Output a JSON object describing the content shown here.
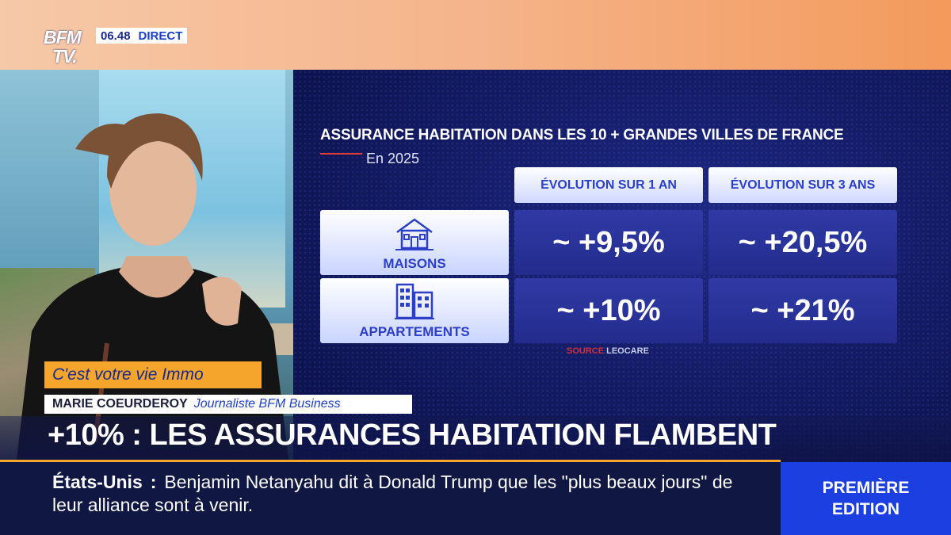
{
  "channel": {
    "logo_top": "BFM",
    "logo_bottom": "TV."
  },
  "live": {
    "time": "06.48",
    "label": "DIRECT"
  },
  "infographic": {
    "title": "ASSURANCE HABITATION DANS LES 10 + GRANDES VILLES DE FRANCE",
    "subtitle": "En 2025",
    "column_headers": [
      "ÉVOLUTION SUR 1 AN",
      "ÉVOLUTION SUR 3 ANS"
    ],
    "rows": [
      {
        "label": "MAISONS",
        "icon": "house-icon",
        "values": [
          "~ +9,5%",
          "~ +20,5%"
        ]
      },
      {
        "label": "APPARTEMENTS",
        "icon": "building-icon",
        "values": [
          "~ +10%",
          "~ +21%"
        ]
      }
    ],
    "source_prefix": "SOURCE",
    "source": "LEOCARE"
  },
  "segment_tag": "C'est votre vie Immo",
  "guest": {
    "name": "MARIE COEURDEROY",
    "role": "Journaliste BFM Business"
  },
  "headline": "+10% : LES ASSURANCES HABITATION FLAMBENT",
  "ticker": {
    "label": "États-Unis",
    "separator": ":",
    "text": "Benjamin Netanyahu dit à Donald Trump que les \"plus beaux jours\" de leur alliance sont à venir."
  },
  "edition": {
    "line1": "PREMIÈRE",
    "line2": "EDITION"
  },
  "colors": {
    "accent_orange": "#f5a52b",
    "brand_blue": "#1b3fe0",
    "panel_navy": "#141c66",
    "source_red": "#d0303c"
  }
}
